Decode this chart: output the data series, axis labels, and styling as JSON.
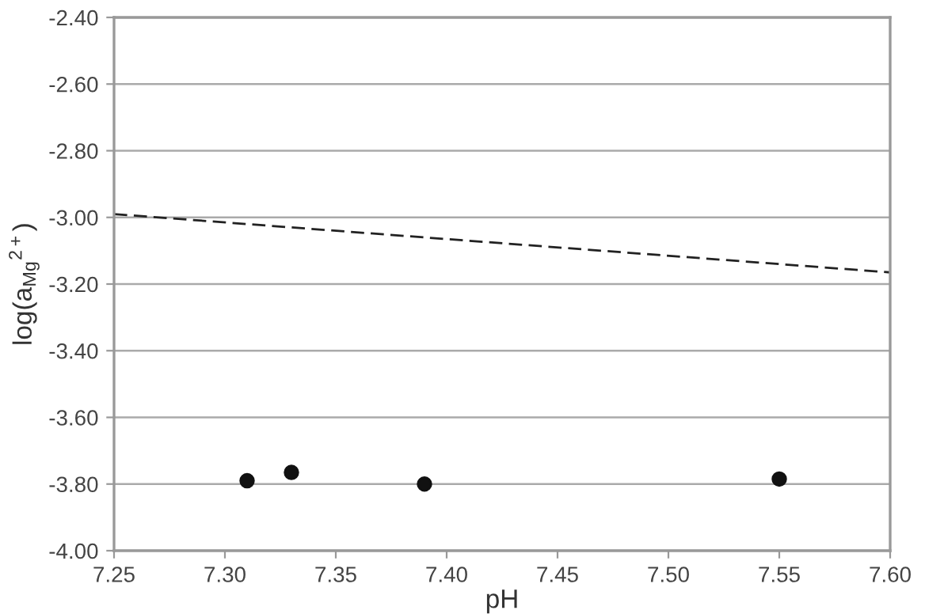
{
  "chart_data": {
    "type": "scatter",
    "xlabel": "pH",
    "ylabel": "log(a$_{Mg}$$^{2+}$)",
    "xlim": [
      7.25,
      7.6
    ],
    "xticks": [
      {
        "value": 7.25,
        "label": "7.25"
      },
      {
        "value": 7.3,
        "label": "7.30"
      },
      {
        "value": 7.35,
        "label": "7.35"
      },
      {
        "value": 7.4,
        "label": "7.40"
      },
      {
        "value": 7.45,
        "label": "7.45"
      },
      {
        "value": 7.5,
        "label": "7.50"
      },
      {
        "value": 7.55,
        "label": "7.55"
      },
      {
        "value": 7.6,
        "label": "7.60"
      }
    ],
    "ylim": [
      -4.0,
      -2.4
    ],
    "yticks": [
      {
        "value": -4.0,
        "label": "-4.00"
      },
      {
        "value": -3.8,
        "label": "-3.80"
      },
      {
        "value": -3.6,
        "label": "-3.60"
      },
      {
        "value": -3.4,
        "label": "-3.40"
      },
      {
        "value": -3.2,
        "label": "-3.20"
      },
      {
        "value": -3.0,
        "label": "-3.00"
      },
      {
        "value": -2.8,
        "label": "-2.80"
      },
      {
        "value": -2.6,
        "label": "-2.60"
      },
      {
        "value": -2.4,
        "label": "-2.40"
      }
    ],
    "grid": "y",
    "legend": false,
    "series": [
      {
        "color": "#111111",
        "marker": "circle",
        "x": [
          7.31,
          7.33,
          7.39,
          7.55
        ],
        "values": [
          -3.79,
          -3.765,
          -3.8,
          -3.785
        ]
      },
      {
        "type": "line",
        "color": "#222222",
        "line_style": "dashed",
        "marker": "none",
        "x": [
          7.25,
          7.6
        ],
        "values": [
          -2.99,
          -3.165
        ]
      }
    ]
  }
}
